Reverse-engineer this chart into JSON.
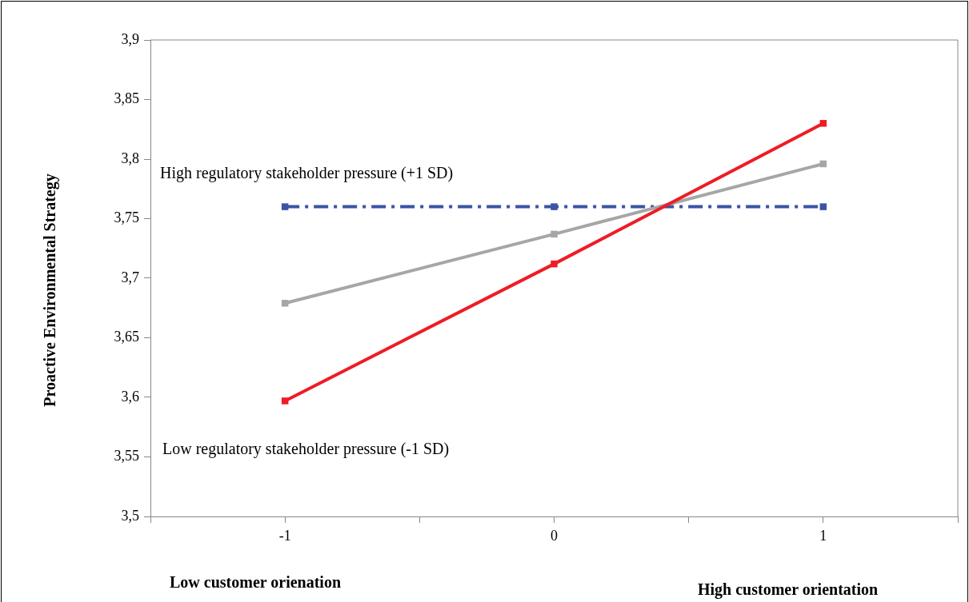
{
  "chart_data": {
    "type": "line",
    "ylabel": "Proactive Environmental Strategy",
    "x": [
      -1,
      0,
      1
    ],
    "xlim": [
      -1.5,
      1.5
    ],
    "xticks": [
      {
        "value": -1.5,
        "label": null
      },
      -1,
      {
        "value": -0.5,
        "label": null
      },
      0,
      {
        "value": 0.5,
        "label": null
      },
      1,
      {
        "value": 1.5,
        "label": null
      }
    ],
    "ylim": [
      3.5,
      3.9
    ],
    "yticks": [
      {
        "value": 3.5,
        "label": "3,5"
      },
      {
        "value": 3.55,
        "label": "3,55"
      },
      {
        "value": 3.6,
        "label": "3,6"
      },
      {
        "value": 3.65,
        "label": "3,65"
      },
      {
        "value": 3.7,
        "label": "3,7"
      },
      {
        "value": 3.75,
        "label": "3,75"
      },
      {
        "value": 3.8,
        "label": "3,8"
      },
      {
        "value": 3.85,
        "label": "3,85"
      },
      {
        "value": 3.9,
        "label": "3,9"
      }
    ],
    "series": [
      {
        "color": "#ee1c25",
        "values": [
          3.597,
          3.712,
          3.83
        ]
      },
      {
        "color": "#a6a6a6",
        "values": [
          3.679,
          3.737,
          3.796
        ]
      },
      {
        "color": "#3a53a4",
        "values": [
          3.76,
          3.76,
          3.76
        ],
        "line_style": "dashed"
      }
    ],
    "annotations": [
      "High regulatory stakeholder pressure (+1 SD)",
      "Low regulatory stakeholder pressure  (-1 SD)",
      "Low customer orienation",
      "High customer orientation"
    ],
    "marker": "square",
    "grid": false,
    "legend": false
  }
}
